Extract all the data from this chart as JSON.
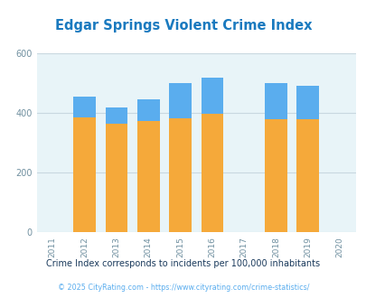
{
  "title": "Edgar Springs Violent Crime Index",
  "title_color": "#1a7abf",
  "years": [
    2011,
    2012,
    2013,
    2014,
    2015,
    2016,
    2017,
    2018,
    2019,
    2020
  ],
  "edgar_springs": {
    "2012": 0,
    "2013": 0,
    "2014": 0,
    "2015": 0,
    "2016": 0,
    "2018": 0,
    "2019": 0
  },
  "missouri": {
    "2012": 455,
    "2013": 420,
    "2014": 447,
    "2015": 500,
    "2016": 520,
    "2018": 500,
    "2019": 492
  },
  "national": {
    "2012": 387,
    "2013": 365,
    "2014": 374,
    "2015": 383,
    "2016": 398,
    "2018": 381,
    "2019": 379
  },
  "ylim": [
    0,
    600
  ],
  "yticks": [
    0,
    200,
    400,
    600
  ],
  "plot_bg_color": "#e8f4f8",
  "missouri_color": "#5aadee",
  "national_color": "#f5a93a",
  "edgar_color": "#8bc34a",
  "grid_color": "#c8d8e0",
  "title_fontsize": 10.5,
  "subtitle": "Crime Index corresponds to incidents per 100,000 inhabitants",
  "footer": "© 2025 CityRating.com - https://www.cityrating.com/crime-statistics/",
  "subtitle_color": "#1a3a5c",
  "footer_color": "#5aadee",
  "legend_edgar_color": "#555555",
  "legend_missouri_color": "#1a7abf",
  "legend_national_color": "#c87820"
}
